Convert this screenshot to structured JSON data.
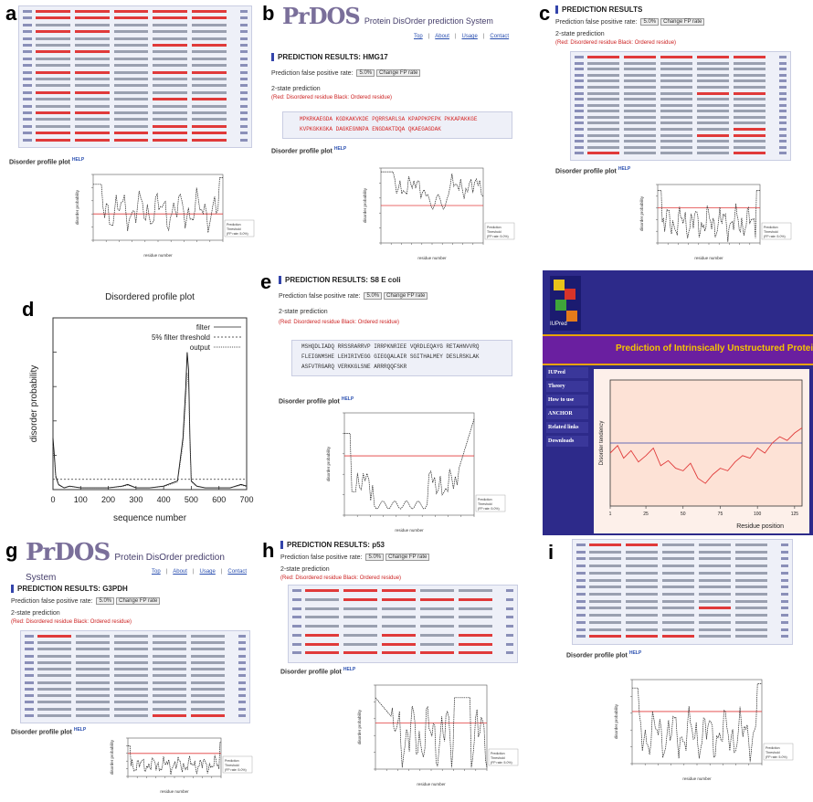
{
  "panels": {
    "a": {
      "label": "a",
      "profile_title": "Disorder profile plot",
      "help": "HELP"
    },
    "b": {
      "label": "b",
      "logo_big": "PrDOS",
      "logo_sub": "Protein DisOrder prediction System",
      "links": [
        "Top",
        "About",
        "Usage",
        "Contact"
      ],
      "results_title": "PREDICTION RESULTS: HMG17",
      "fp_label": "Prediction false positive rate:",
      "fp_value": "5.0%",
      "change_btn": "Change FP rate",
      "state_label": "2-state prediction",
      "legend_text": "(Red: Disordered residue Black: Ordered residue)",
      "seq_row1": "MPKRKAEGDA KGDKAKVKDE PQRRSARLSA KPAPPKPEPK PKKAPAKKGE",
      "seq_row2": "KVPKGKKGKA DAGKEGNNPA ENGDAKTDQA QKAEGAGDAK",
      "profile_title": "Disorder profile plot",
      "help": "HELP"
    },
    "c": {
      "label": "c",
      "results_title": "PREDICTION RESULTS",
      "fp_label": "Prediction false positive rate:",
      "fp_value": "5.0%",
      "change_btn": "Change FP rate",
      "state_label": "2-state prediction",
      "legend_text": "(Red: Disordered residue Black: Ordered residue)",
      "profile_title": "Disorder profile plot",
      "help": "HELP"
    },
    "d": {
      "label": "d",
      "title": "Disordered profile plot",
      "ylabel": "disorder probability",
      "xlabel": "sequence number",
      "legend": [
        "filter",
        "5% filter threshold",
        "output"
      ]
    },
    "e": {
      "label": "e",
      "results_title": "PREDICTION RESULTS: S8 E coli",
      "fp_label": "Prediction false positive rate:",
      "fp_value": "5.0%",
      "change_btn": "Change FP rate",
      "state_label": "2-state prediction",
      "legend_text": "(Red: Disordered residue Black: Ordered residue)",
      "seq_row1": "MSHQDLIADQ RRSSRARRVP IRRPKNRIEE VQRDLEQAYG RETAHNVVRQ",
      "seq_row2": "FLEIGNMSHE LEHIRIVEGG GIEGQALAIR SGITHALMEY DESLRSKLAK",
      "seq_row3": "ASFVTRGARQ VERKKGLSNE ARRRQQFSKR",
      "profile_title": "Disorder profile plot",
      "help": "HELP"
    },
    "f": {
      "label": "f",
      "logo": "IUPred",
      "banner": "Prediction of Intrinsically Unstructured Proteins",
      "menu": [
        "IUPred",
        "Theory",
        "How to use",
        "ANCHOR",
        "Related links",
        "Downloads"
      ],
      "ylabel": "Disorder tendency",
      "xlabel": "Residue position"
    },
    "g": {
      "label": "g",
      "logo_big": "PrDOS",
      "logo_sub": "Protein DisOrder prediction System",
      "links": [
        "Top",
        "About",
        "Usage",
        "Contact"
      ],
      "results_title": "PREDICTION RESULTS: G3PDH",
      "fp_label": "Prediction false positive rate:",
      "fp_value": "5.0%",
      "change_btn": "Change FP rate",
      "state_label": "2-state prediction",
      "legend_text": "(Red: Disordered residue Black: Ordered residue)",
      "profile_title": "Disorder profile plot",
      "help": "HELP"
    },
    "h": {
      "label": "h",
      "results_title": "PREDICTION RESULTS: p53",
      "fp_label": "Prediction false positive rate:",
      "fp_value": "5.0%",
      "change_btn": "Change FP rate",
      "state_label": "2-state prediction",
      "legend_text": "(Red: Disordered residue Black: Ordered residue)",
      "profile_title": "Disorder profile plot",
      "help": "HELP"
    },
    "i": {
      "label": "i",
      "profile_title": "Disorder profile plot",
      "help": "HELP"
    }
  },
  "legend_small": [
    "Prediction",
    "Threshold",
    "(FP rate: 5.0%)"
  ],
  "axis_small": {
    "y": "disorder probability",
    "x": "residue number"
  },
  "colors": {
    "red": "#e03a3a",
    "seq_bg": "#eef0f8",
    "iupred_bg": "#2d2a8a",
    "iupred_plot_bg": "#fde8e0",
    "threshold": "#e03a3a"
  },
  "chart_data": [
    {
      "panel": "d",
      "type": "line",
      "title": "Disordered profile plot",
      "xlabel": "sequence number",
      "ylabel": "disorder probability",
      "xlim": [
        0,
        700
      ],
      "ylim": [
        0,
        1
      ],
      "x_ticks": [
        0,
        100,
        200,
        300,
        400,
        500,
        600,
        700
      ],
      "threshold": 0.06,
      "x": [
        0,
        5,
        10,
        20,
        40,
        60,
        100,
        150,
        200,
        250,
        270,
        300,
        350,
        400,
        450,
        470,
        480,
        485,
        490,
        495,
        500,
        520,
        550,
        600,
        640,
        660,
        680,
        700
      ],
      "y": [
        0.3,
        0.2,
        0.08,
        0.03,
        0.01,
        0.02,
        0.01,
        0.01,
        0.01,
        0.02,
        0.03,
        0.01,
        0.01,
        0.02,
        0.05,
        0.3,
        0.6,
        0.8,
        0.7,
        0.3,
        0.05,
        0.02,
        0.01,
        0.01,
        0.01,
        0.02,
        0.03,
        0.02
      ]
    },
    {
      "panel": "f",
      "type": "line",
      "xlabel": "Residue position",
      "ylabel": "Disorder tendency",
      "ylim": [
        0,
        1
      ],
      "threshold": 0.5,
      "x_ticks": [
        1,
        25,
        50,
        75,
        100,
        125
      ],
      "x": [
        1,
        6,
        10,
        15,
        20,
        25,
        30,
        35,
        40,
        45,
        50,
        55,
        60,
        65,
        70,
        75,
        80,
        85,
        90,
        95,
        100,
        105,
        110,
        115,
        120,
        125,
        130
      ],
      "y": [
        0.42,
        0.48,
        0.38,
        0.44,
        0.35,
        0.4,
        0.46,
        0.32,
        0.36,
        0.3,
        0.28,
        0.34,
        0.22,
        0.18,
        0.25,
        0.3,
        0.28,
        0.35,
        0.4,
        0.38,
        0.46,
        0.42,
        0.5,
        0.55,
        0.52,
        0.58,
        0.62
      ]
    }
  ]
}
